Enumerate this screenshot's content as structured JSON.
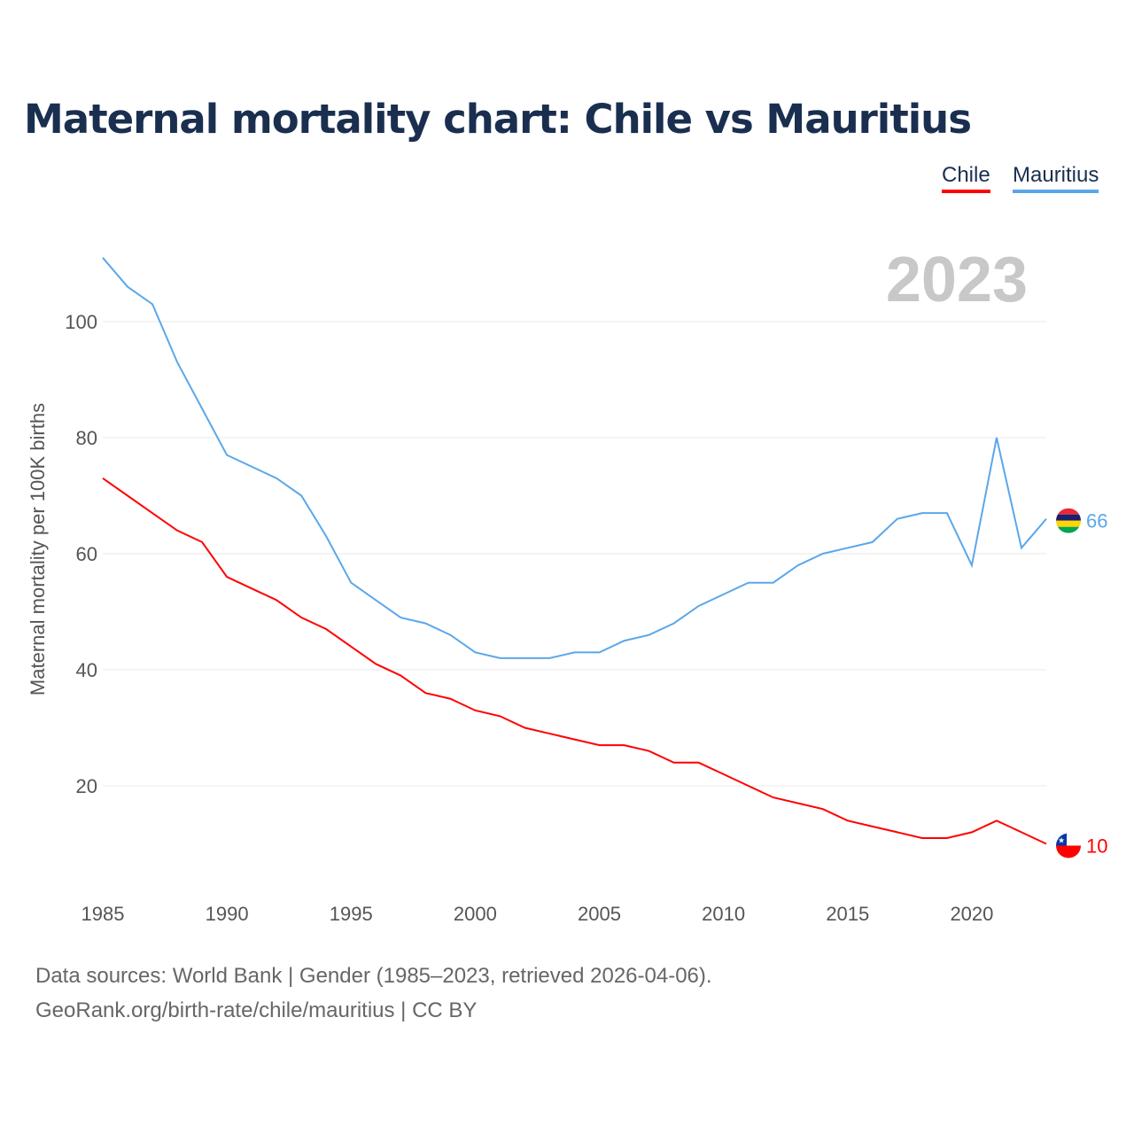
{
  "title": "Maternal mortality chart: Chile vs Mauritius",
  "footer": {
    "line1": "Data sources: World Bank | Gender (1985–2023, retrieved 2026-04-06).",
    "line2": "GeoRank.org/birth-rate/chile/mauritius | CC BY"
  },
  "chart_data": {
    "type": "line",
    "title": "Maternal mortality chart: Chile vs Mauritius",
    "ylabel": "Maternal mortality per 100K births",
    "xlabel": "",
    "year_label": "2023",
    "ylim": [
      0,
      115
    ],
    "xlim": [
      1985,
      2023
    ],
    "yticks": [
      20,
      40,
      60,
      80,
      100
    ],
    "xticks": [
      1985,
      1990,
      1995,
      2000,
      2005,
      2010,
      2015,
      2020
    ],
    "grid": true,
    "legend_placement": "top-right",
    "x": [
      1985,
      1986,
      1987,
      1988,
      1989,
      1990,
      1991,
      1992,
      1993,
      1994,
      1995,
      1996,
      1997,
      1998,
      1999,
      2000,
      2001,
      2002,
      2003,
      2004,
      2005,
      2006,
      2007,
      2008,
      2009,
      2010,
      2011,
      2012,
      2013,
      2014,
      2015,
      2016,
      2017,
      2018,
      2019,
      2020,
      2021,
      2022,
      2023
    ],
    "series": [
      {
        "name": "Chile",
        "color": "#ff0000",
        "end_label": "10",
        "values": [
          73,
          70,
          67,
          64,
          62,
          56,
          54,
          52,
          49,
          47,
          44,
          41,
          39,
          36,
          35,
          33,
          32,
          30,
          29,
          28,
          27,
          27,
          26,
          24,
          24,
          22,
          20,
          18,
          17,
          16,
          14,
          13,
          12,
          11,
          11,
          12,
          14,
          12,
          10
        ]
      },
      {
        "name": "Mauritius",
        "color": "#5ba7ea",
        "end_label": "66",
        "values": [
          111,
          106,
          103,
          93,
          85,
          77,
          75,
          73,
          70,
          63,
          55,
          52,
          49,
          48,
          46,
          43,
          42,
          42,
          42,
          43,
          43,
          45,
          46,
          48,
          51,
          53,
          55,
          55,
          58,
          60,
          61,
          62,
          66,
          67,
          67,
          58,
          80,
          61,
          66
        ]
      }
    ]
  }
}
